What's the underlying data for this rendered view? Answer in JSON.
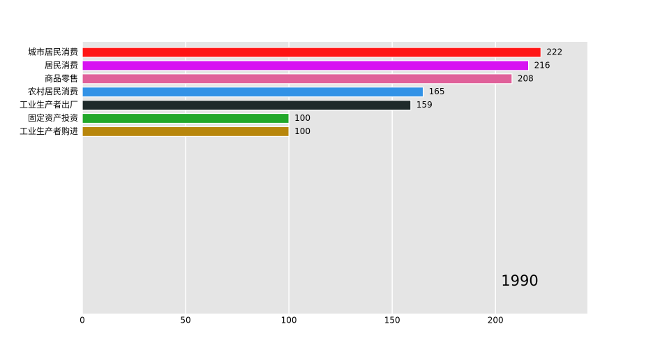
{
  "chart_data": {
    "type": "barh",
    "annotation": "1990",
    "categories": [
      "城市居民消费",
      "居民消费",
      "商品零售",
      "农村居民消费",
      "工业生产者出厂",
      "固定资产投资",
      "工业生产者购进"
    ],
    "values": [
      222,
      216,
      208,
      165,
      159,
      100,
      100
    ],
    "colors": [
      "#ff1414",
      "#d712f2",
      "#e0609a",
      "#3292e6",
      "#1f2a2a",
      "#22a82a",
      "#b8860b"
    ],
    "xlim": [
      0,
      244.5
    ],
    "xticks": [
      0,
      50,
      100,
      150,
      200
    ],
    "grid": true
  }
}
